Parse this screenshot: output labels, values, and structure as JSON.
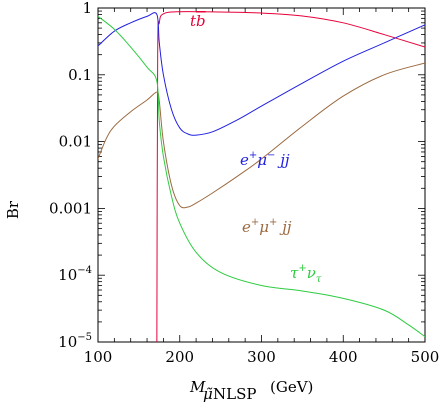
{
  "chart_data": {
    "type": "line",
    "title": "",
    "ylabel": "Br",
    "xlabel": {
      "main": "M",
      "accent": "μ̃",
      "sub": "NLSP",
      "unit": "(GeV)"
    },
    "xlim": [
      100,
      500
    ],
    "ylim": [
      1e-05,
      1
    ],
    "y_scale": "log",
    "grid": false,
    "x_ticks": [
      "100",
      "200",
      "300",
      "400",
      "500"
    ],
    "y_ticks": [
      {
        "value": 1,
        "label": "1"
      },
      {
        "value": 0.1,
        "label": "0.1"
      },
      {
        "value": 0.01,
        "label": "0.01"
      },
      {
        "value": 0.001,
        "label": "0.001"
      },
      {
        "value": 0.0001,
        "label": "10",
        "exp": "−4"
      },
      {
        "value": 1e-05,
        "label": "10",
        "exp": "−5"
      }
    ],
    "series": [
      {
        "key": "tb",
        "color": "#e8003a",
        "label": {
          "base": "t",
          "bar": "b"
        },
        "x": [
          172,
          173,
          175,
          180,
          200,
          250,
          300,
          350,
          400,
          450,
          500
        ],
        "y": [
          1e-05,
          0.2,
          0.6,
          0.82,
          0.88,
          0.87,
          0.84,
          0.76,
          0.6,
          0.4,
          0.26
        ]
      },
      {
        "key": "emujj",
        "color": "#2020e0",
        "label": {
          "base": "e",
          "sup1": "+",
          "mid": "μ",
          "sup2": "−",
          "tail": "jj"
        },
        "x": [
          100,
          120,
          140,
          160,
          172,
          175,
          180,
          190,
          200,
          210,
          220,
          240,
          270,
          300,
          350,
          400,
          450,
          500
        ],
        "y": [
          0.27,
          0.45,
          0.6,
          0.75,
          0.8,
          0.3,
          0.1,
          0.03,
          0.016,
          0.013,
          0.0125,
          0.014,
          0.021,
          0.034,
          0.075,
          0.16,
          0.3,
          0.56
        ]
      },
      {
        "key": "emupjj",
        "color": "#9c6a40",
        "label": {
          "base": "e",
          "sup1": "+",
          "mid": "μ",
          "sup2": "+",
          "tail": "jj"
        },
        "x": [
          100,
          110,
          120,
          140,
          160,
          172,
          175,
          180,
          190,
          200,
          210,
          220,
          240,
          270,
          300,
          350,
          400,
          450,
          500
        ],
        "y": [
          0.0055,
          0.011,
          0.017,
          0.028,
          0.042,
          0.055,
          0.04,
          0.01,
          0.0022,
          0.0011,
          0.00105,
          0.0012,
          0.0017,
          0.003,
          0.0055,
          0.017,
          0.048,
          0.1,
          0.15
        ]
      },
      {
        "key": "taunu",
        "color": "#2ecc40",
        "label": {
          "base": "τ",
          "sup1": "+",
          "mid": "ν",
          "subscript": "τ"
        },
        "x": [
          100,
          120,
          140,
          160,
          172,
          175,
          180,
          190,
          200,
          220,
          250,
          300,
          350,
          400,
          450,
          480,
          500
        ],
        "y": [
          0.75,
          0.48,
          0.26,
          0.13,
          0.08,
          0.02,
          0.006,
          0.0015,
          0.0006,
          0.00022,
          0.00011,
          7e-05,
          5.8e-05,
          4.5e-05,
          3e-05,
          1.8e-05,
          1.2e-05
        ]
      }
    ]
  }
}
